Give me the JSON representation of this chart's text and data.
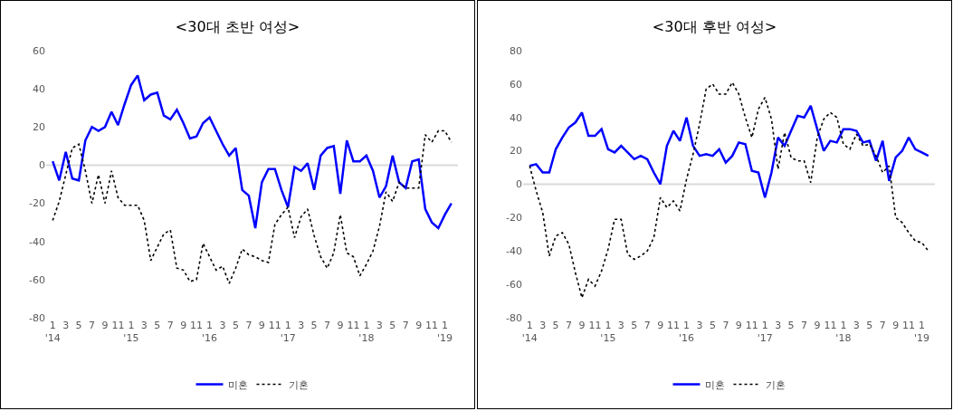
{
  "chart_data": [
    {
      "type": "line",
      "title": "<30대 초반 여성>",
      "categories": [
        "1\n'14",
        null,
        "3",
        null,
        "5",
        null,
        "7",
        null,
        "9",
        null,
        "11",
        null,
        "1\n'15",
        null,
        "3",
        null,
        "5",
        null,
        "7",
        null,
        "9",
        null,
        "11",
        null,
        "1\n'16",
        null,
        "3",
        null,
        "5",
        null,
        "7",
        null,
        "9",
        null,
        "11",
        null,
        "1\n'17",
        null,
        "3",
        null,
        "5",
        null,
        "7",
        null,
        "9",
        null,
        "11",
        null,
        "1\n'18",
        null,
        "3",
        null,
        "5",
        null,
        "7",
        null,
        "9",
        null,
        "11",
        null,
        "1\n'19",
        null
      ],
      "series": [
        {
          "name": "미혼",
          "color": "#0000ff",
          "line_style": "solid",
          "values": [
            2,
            -8,
            7,
            -7,
            -8,
            13,
            20,
            18,
            20,
            28,
            21,
            32,
            42,
            47,
            34,
            37,
            38,
            26,
            24,
            29,
            22,
            14,
            15,
            22,
            25,
            18,
            11,
            5,
            9,
            -13,
            -16,
            -33,
            -9,
            -2,
            -2,
            -13,
            -22,
            -1,
            -3,
            1,
            -13,
            5,
            9,
            10,
            -15,
            13,
            2,
            2,
            5,
            -3,
            -17,
            -11,
            5,
            -9,
            -12,
            2,
            3,
            -23,
            -30,
            -33,
            -26,
            -20
          ]
        },
        {
          "name": "기혼",
          "color": "#000000",
          "line_style": "dotted",
          "values": [
            -29,
            -19,
            -5,
            9,
            11,
            -3,
            -20,
            -5,
            -20,
            -3,
            -17,
            -21,
            -21,
            -21,
            -29,
            -50,
            -43,
            -36,
            -34,
            -54,
            -55,
            -61,
            -60,
            -41,
            -48,
            -55,
            -53,
            -62,
            -54,
            -44,
            -47,
            -48,
            -50,
            -51,
            -31,
            -26,
            -22,
            -38,
            -27,
            -23,
            -37,
            -48,
            -54,
            -46,
            -26,
            -46,
            -48,
            -58,
            -52,
            -45,
            -32,
            -14,
            -19,
            -9,
            -12,
            -12,
            -12,
            16,
            12,
            18,
            18,
            12
          ]
        }
      ],
      "ylim": [
        -80,
        60
      ],
      "yticks": [
        -80,
        -60,
        -40,
        -20,
        0,
        20,
        40,
        60
      ],
      "ref_lines": [
        {
          "axis": "y",
          "value": 0,
          "color": "#d9d9d9"
        }
      ],
      "grid": false,
      "legend": "bottom",
      "marker": "none"
    },
    {
      "type": "line",
      "title": "<30대 후반 여성>",
      "categories": [
        "1\n'14",
        null,
        "3",
        null,
        "5",
        null,
        "7",
        null,
        "9",
        null,
        "11",
        null,
        "1\n'15",
        null,
        "3",
        null,
        "5",
        null,
        "7",
        null,
        "9",
        null,
        "11",
        null,
        "1\n'16",
        null,
        "3",
        null,
        "5",
        null,
        "7",
        null,
        "9",
        null,
        "11",
        null,
        "1\n'17",
        null,
        "3",
        null,
        "5",
        null,
        "7",
        null,
        "9",
        null,
        "11",
        null,
        "1\n'18",
        null,
        "3",
        null,
        "5",
        null,
        "7",
        null,
        "9",
        null,
        "11",
        null,
        "1\n'19",
        null
      ],
      "series": [
        {
          "name": "미혼",
          "color": "#0000ff",
          "line_style": "solid",
          "values": [
            11,
            12,
            7,
            7,
            21,
            28,
            34,
            37,
            43,
            29,
            29,
            33,
            21,
            19,
            23,
            19,
            15,
            17,
            15,
            7,
            0,
            23,
            32,
            26,
            40,
            23,
            17,
            18,
            17,
            21,
            13,
            17,
            25,
            24,
            8,
            7,
            -8,
            7,
            28,
            23,
            32,
            41,
            40,
            47,
            33,
            20,
            26,
            25,
            33,
            33,
            32,
            25,
            26,
            14,
            26,
            2,
            16,
            20,
            28,
            21,
            19,
            17
          ]
        },
        {
          "name": "기혼",
          "color": "#000000",
          "line_style": "dotted",
          "values": [
            11,
            -4,
            -17,
            -43,
            -31,
            -29,
            -36,
            -53,
            -68,
            -57,
            -61,
            -52,
            -39,
            -21,
            -21,
            -42,
            -45,
            -43,
            -40,
            -32,
            -8,
            -14,
            -10,
            -16,
            3,
            18,
            36,
            57,
            60,
            54,
            54,
            61,
            54,
            40,
            28,
            45,
            52,
            39,
            9,
            31,
            16,
            14,
            14,
            1,
            28,
            39,
            43,
            40,
            24,
            21,
            30,
            23,
            24,
            17,
            7,
            11,
            -20,
            -23,
            -29,
            -34,
            -35,
            -40
          ]
        }
      ],
      "ylim": [
        -80,
        80
      ],
      "yticks": [
        -80,
        -60,
        -40,
        -20,
        0,
        20,
        40,
        60,
        80
      ],
      "ref_lines": [
        {
          "axis": "y",
          "value": 0,
          "color": "#d9d9d9"
        }
      ],
      "grid": false,
      "legend": "bottom",
      "marker": "none"
    }
  ]
}
